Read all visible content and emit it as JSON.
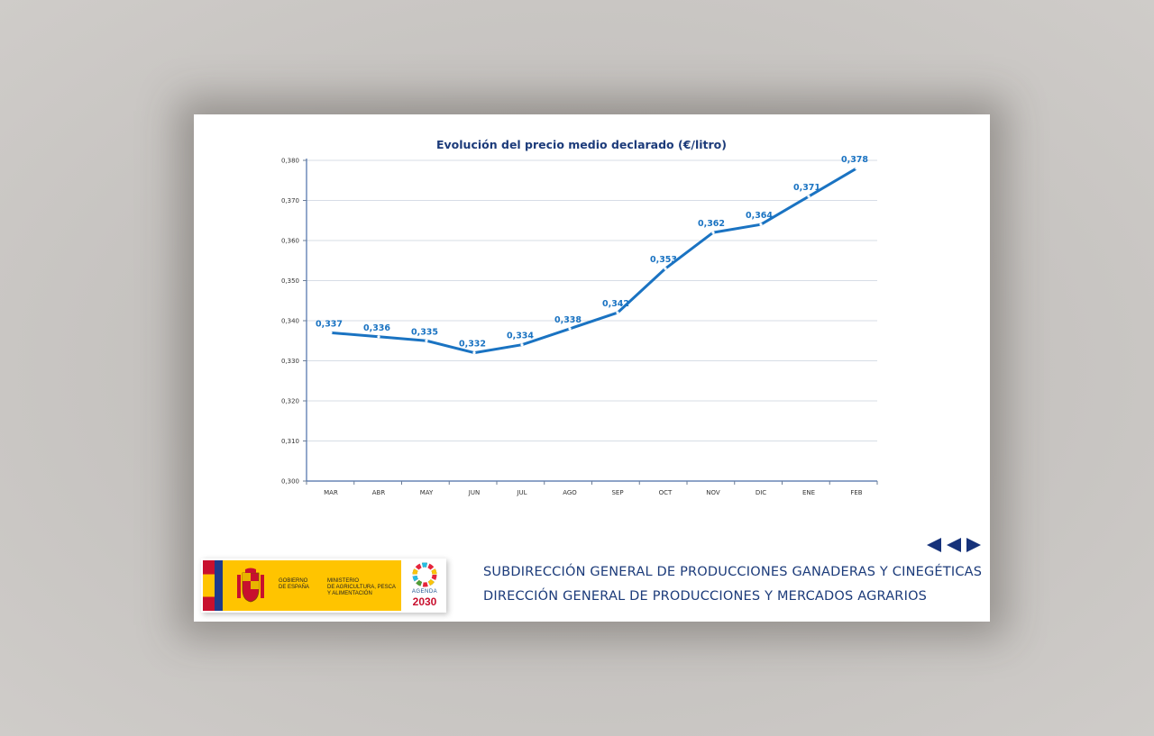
{
  "chart_data": {
    "type": "line",
    "title": "Evolución del precio medio declarado  (€/litro)",
    "categories": [
      "MAR",
      "ABR",
      "MAY",
      "JUN",
      "JUL",
      "AGO",
      "SEP",
      "OCT",
      "NOV",
      "DIC",
      "ENE",
      "FEB"
    ],
    "values": [
      0.337,
      0.336,
      0.335,
      0.332,
      0.334,
      0.338,
      0.342,
      0.353,
      0.362,
      0.364,
      0.371,
      0.378
    ],
    "data_labels": [
      "0,337",
      "0,336",
      "0,335",
      "0,332",
      "0,334",
      "0,338",
      "0,342",
      "0,353",
      "0,362",
      "0,364",
      "0,371",
      "0,378"
    ],
    "ylim": [
      0.3,
      0.38
    ],
    "yticks": [
      0.3,
      0.31,
      0.32,
      0.33,
      0.34,
      0.35,
      0.36,
      0.37,
      0.38
    ],
    "ytick_labels": [
      "0,300",
      "0,310",
      "0,320",
      "0,330",
      "0,340",
      "0,350",
      "0,360",
      "0,370",
      "0,380"
    ],
    "grid": true,
    "line_color": "#1a73c2",
    "title_color": "#1c3b7a"
  },
  "footer": {
    "line1": "SUBDIRECCIÓN GENERAL DE PRODUCCIONES GANADERAS Y CINEGÉTICAS",
    "line2": "DIRECCIÓN GENERAL DE PRODUCCIONES Y MERCADOS AGRARIOS"
  },
  "logo": {
    "gobierno_line1": "GOBIERNO",
    "gobierno_line2": "DE ESPAÑA",
    "ministerio_line1": "MINISTERIO",
    "ministerio_line2": "DE AGRICULTURA, PESCA",
    "ministerio_line3": "Y ALIMENTACIÓN",
    "agenda_label": "AGENDA",
    "agenda_year": "2030"
  },
  "nav": {
    "icons": [
      "first-page-icon",
      "previous-page-icon",
      "next-page-icon"
    ],
    "color": "#16327a"
  }
}
